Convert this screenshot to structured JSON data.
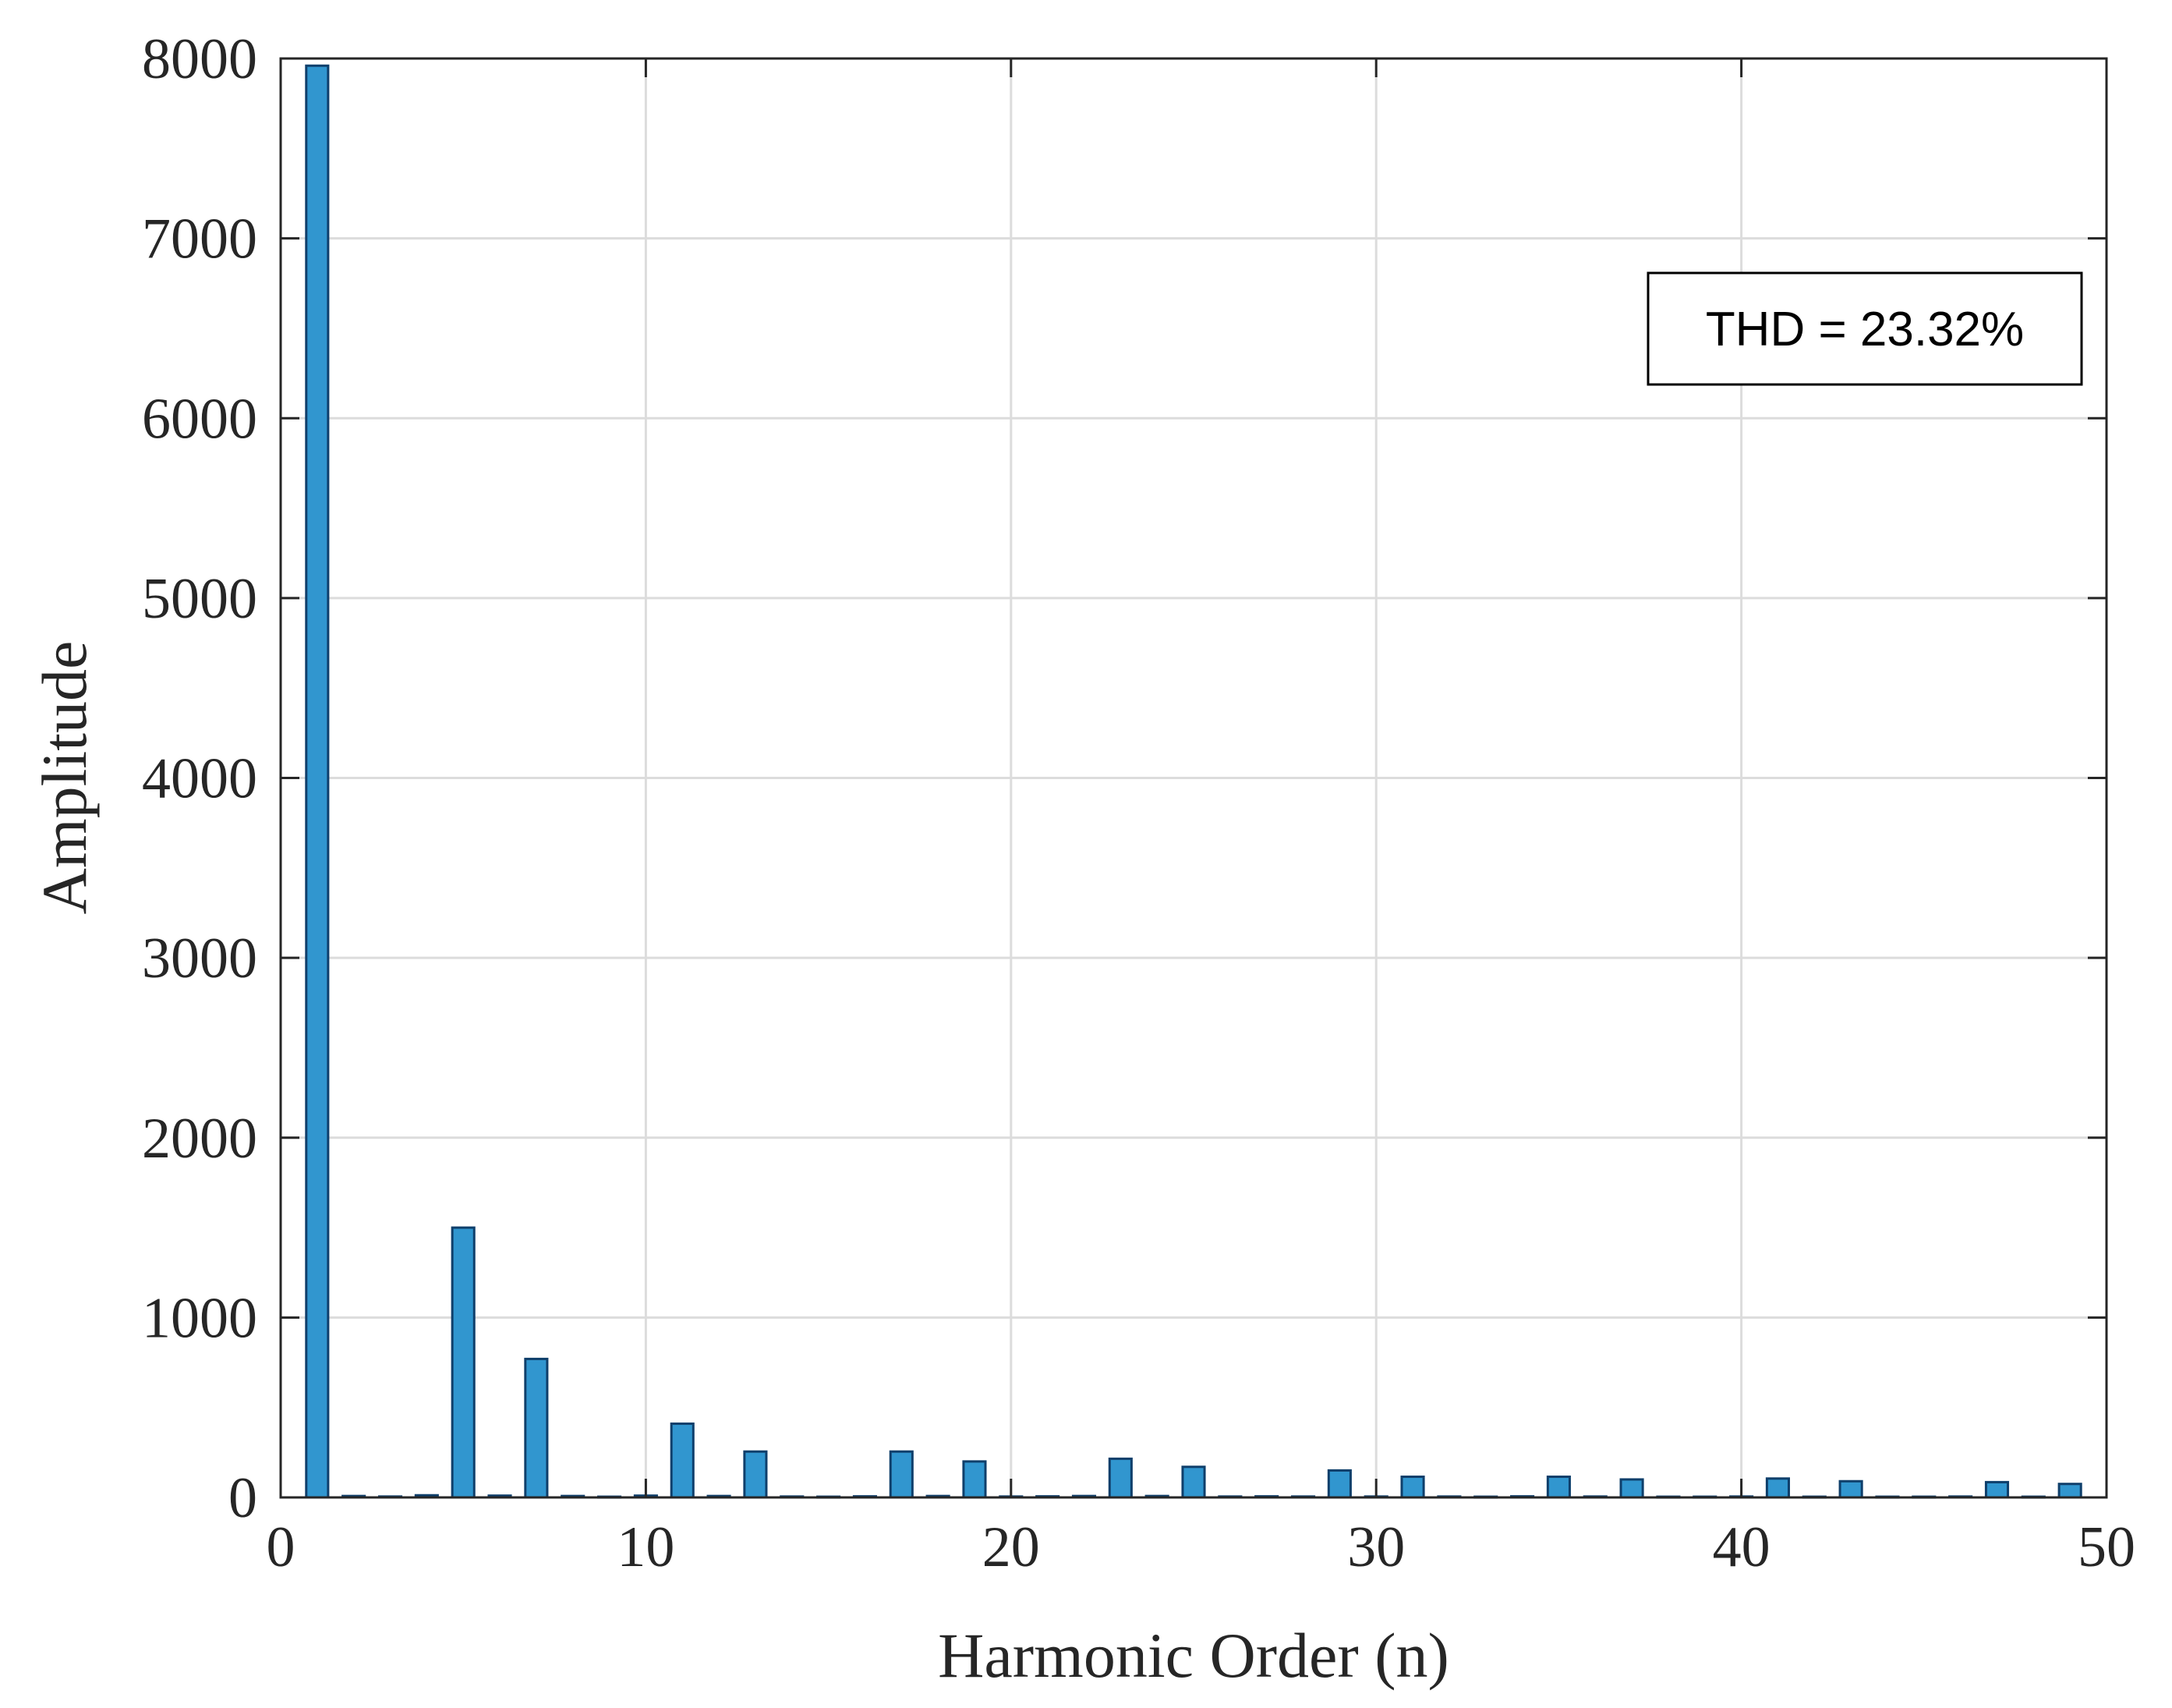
{
  "chart_data": {
    "type": "bar",
    "xlabel": "Harmonic Order (n)",
    "ylabel": "Amplitude",
    "xlim": [
      0,
      50
    ],
    "ylim": [
      0,
      8000
    ],
    "xticks": [
      "0",
      "10",
      "20",
      "30",
      "40",
      "50"
    ],
    "yticks": [
      "0",
      "1000",
      "2000",
      "3000",
      "4000",
      "5000",
      "6000",
      "7000",
      "8000"
    ],
    "grid": true,
    "annotation": "THD = 23.32%",
    "annotation_position": "top-right",
    "bar_color": "#3196cf",
    "bar_edge_color": "#0f3f6b",
    "harmonics": [
      1,
      2,
      3,
      4,
      5,
      6,
      7,
      8,
      9,
      10,
      11,
      12,
      13,
      14,
      15,
      16,
      17,
      18,
      19,
      20,
      21,
      22,
      23,
      24,
      25,
      26,
      27,
      28,
      29,
      30,
      31,
      32,
      33,
      34,
      35,
      36,
      37,
      38,
      39,
      40,
      41,
      42,
      43,
      44,
      45,
      46,
      47,
      48,
      49
    ],
    "values": [
      7960,
      8,
      5,
      12,
      1500,
      10,
      770,
      8,
      4,
      10,
      410,
      8,
      255,
      5,
      4,
      6,
      255,
      8,
      200,
      5,
      6,
      8,
      215,
      8,
      170,
      5,
      6,
      5,
      150,
      5,
      115,
      5,
      4,
      6,
      115,
      5,
      100,
      4,
      4,
      5,
      105,
      4,
      90,
      4,
      4,
      5,
      85,
      4,
      75
    ]
  }
}
